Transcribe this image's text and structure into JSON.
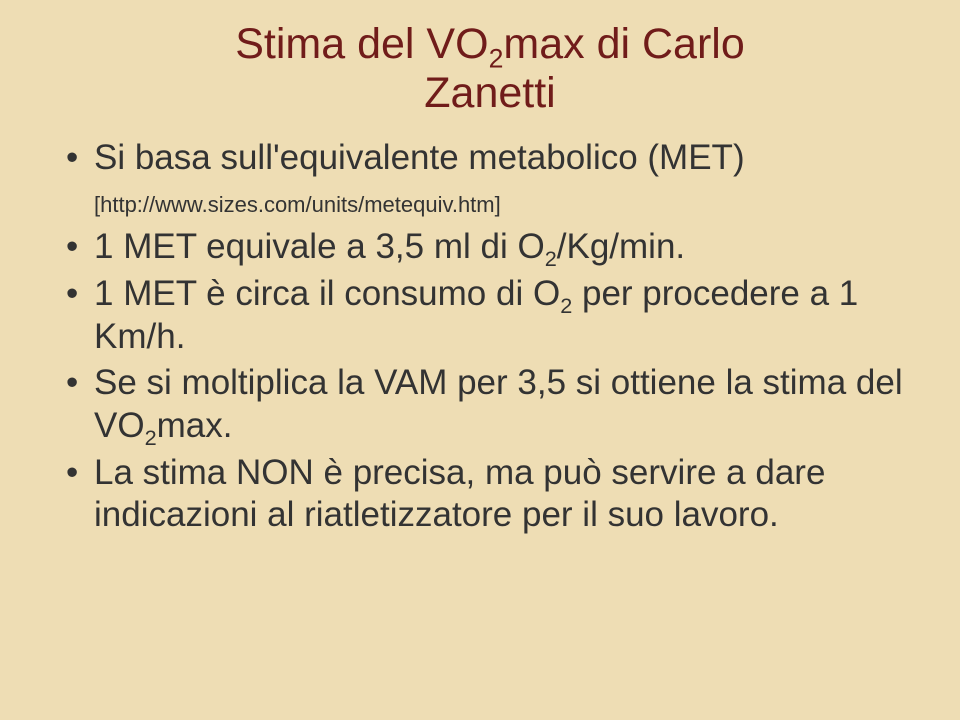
{
  "slide": {
    "background_color": "#eeddb4",
    "title_color": "#701c1a",
    "text_color": "#333333",
    "title_fontsize": 43,
    "body_fontsize": 35,
    "smalllink_fontsize": 22,
    "title_line1": "Stima del VO",
    "title_sub1": "2",
    "title_line1b": "max di Carlo",
    "title_line2": "Zanetti",
    "bullets": [
      {
        "pre": "Si basa sull'equivalente metabolico (MET) ",
        "link": "[http://www.sizes.com/units/metequiv.htm]"
      },
      {
        "pre": "1 MET equivale a 3,5 ml di O",
        "sub": "2",
        "post": "/Kg/min."
      },
      {
        "pre": "1 MET è circa il consumo di O",
        "sub": "2",
        "post": " per procedere a 1 Km/h."
      },
      {
        "pre": "Se si moltiplica la VAM per 3,5 si ottiene la stima del VO",
        "sub": "2",
        "post": "max."
      },
      {
        "pre": "La stima NON è precisa, ma può servire a dare indicazioni al riatletizzatore per il suo lavoro."
      }
    ]
  }
}
